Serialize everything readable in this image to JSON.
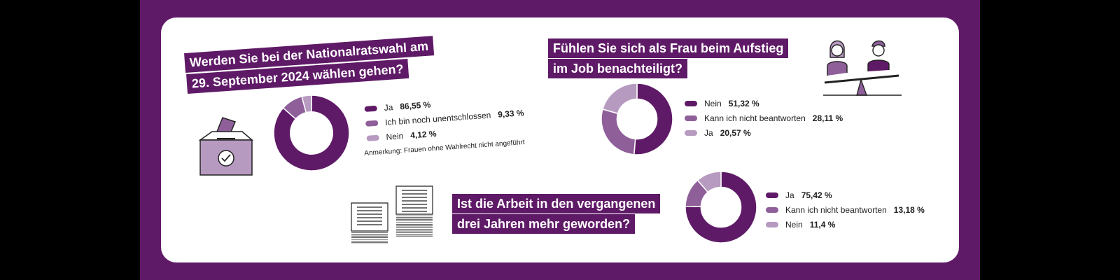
{
  "colors": {
    "dark": "#5f1a67",
    "mid": "#8f5f9a",
    "light": "#b79ac0",
    "frame": "#5f1a67",
    "card": "#ffffff"
  },
  "icons": [
    "ballot-box-icon",
    "people-seesaw-icon",
    "paper-stack-icon"
  ],
  "q1": {
    "title_line1": "Werden Sie bei der Nationalratswahl am",
    "title_line2": "29. September 2024 wählen gehen?",
    "note": "Anmerkung: Frauen ohne Wahlrecht nicht angeführt",
    "legend": [
      {
        "label": "Ja",
        "value": "86,55 %"
      },
      {
        "label": "Ich bin noch unentschlossen",
        "value": "9,33 %"
      },
      {
        "label": "Nein",
        "value": "4,12 %"
      }
    ]
  },
  "q2": {
    "title_line1": "Fühlen Sie sich als Frau beim Aufstieg",
    "title_line2": "im Job benachteiligt?",
    "legend": [
      {
        "label": "Nein",
        "value": "51,32 %"
      },
      {
        "label": "Kann ich nicht beantworten",
        "value": "28,11 %"
      },
      {
        "label": "Ja",
        "value": "20,57 %"
      }
    ]
  },
  "q3": {
    "title_line1": "Ist die Arbeit in den vergangenen",
    "title_line2": "drei Jahren mehr geworden?",
    "legend": [
      {
        "label": "Ja",
        "value": "75,42 %"
      },
      {
        "label": "Kann ich nicht beantworten",
        "value": "13,18 %"
      },
      {
        "label": "Nein",
        "value": "11,4 %"
      }
    ]
  },
  "chart_data": [
    {
      "type": "pie",
      "donut": true,
      "title": "Werden Sie bei der Nationalratswahl am 29. September 2024 wählen gehen?",
      "categories": [
        "Ja",
        "Ich bin noch unentschlossen",
        "Nein"
      ],
      "values": [
        86.55,
        9.33,
        4.12
      ],
      "colors": [
        "#5f1a67",
        "#8f5f9a",
        "#b79ac0"
      ]
    },
    {
      "type": "pie",
      "donut": true,
      "title": "Fühlen Sie sich als Frau beim Aufstieg im Job benachteiligt?",
      "categories": [
        "Nein",
        "Kann ich nicht beantworten",
        "Ja"
      ],
      "values": [
        51.32,
        28.11,
        20.57
      ],
      "colors": [
        "#5f1a67",
        "#8f5f9a",
        "#b79ac0"
      ]
    },
    {
      "type": "pie",
      "donut": true,
      "title": "Ist die Arbeit in den vergangenen drei Jahren mehr geworden?",
      "categories": [
        "Ja",
        "Kann ich nicht beantworten",
        "Nein"
      ],
      "values": [
        75.42,
        13.18,
        11.4
      ],
      "colors": [
        "#5f1a67",
        "#8f5f9a",
        "#b79ac0"
      ]
    }
  ]
}
